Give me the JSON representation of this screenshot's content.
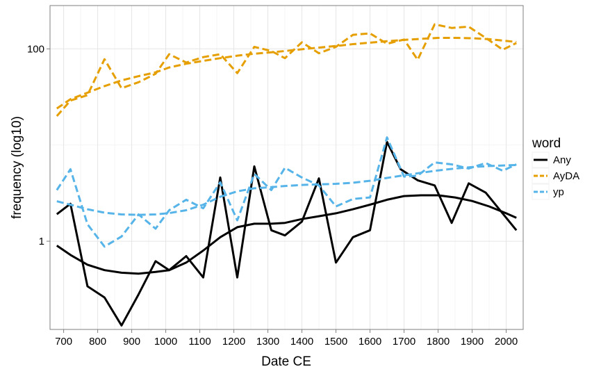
{
  "chart_data": {
    "type": "line",
    "title": "",
    "xlabel": "Date CE",
    "ylabel": "frequency (log10)",
    "yscale": "log10",
    "xlim": [
      660,
      2050
    ],
    "ylim": [
      0.121,
      282
    ],
    "x_ticks": [
      700,
      800,
      900,
      1000,
      1100,
      1200,
      1300,
      1400,
      1500,
      1600,
      1700,
      1800,
      1900,
      2000
    ],
    "x_tick_labels": [
      "700",
      "800",
      "900",
      "1000",
      "1100",
      "1200",
      "1300",
      "1400",
      "1500",
      "1600",
      "1700",
      "1800",
      "1900",
      "2000"
    ],
    "y_ticks": [
      1,
      100
    ],
    "y_tick_labels": [
      "1",
      "100"
    ],
    "legend": {
      "title": "word",
      "position": "right",
      "entries": [
        "Any",
        "AyDA",
        "yp"
      ]
    },
    "series": [
      {
        "name": "Any",
        "color": "#000000",
        "dash": "solid",
        "x": [
          680,
          720,
          770,
          820,
          870,
          920,
          970,
          1010,
          1060,
          1110,
          1160,
          1210,
          1260,
          1310,
          1350,
          1400,
          1450,
          1500,
          1550,
          1600,
          1650,
          1690,
          1740,
          1790,
          1840,
          1890,
          1940,
          2030
        ],
        "values": [
          1.91,
          2.45,
          0.34,
          0.26,
          0.133,
          0.28,
          0.62,
          0.5,
          0.7,
          0.42,
          4.6,
          0.42,
          6.0,
          1.3,
          1.15,
          1.6,
          4.5,
          0.6,
          1.1,
          1.3,
          10.8,
          5.6,
          4.3,
          3.8,
          1.55,
          4.0,
          3.2,
          1.3
        ]
      },
      {
        "name": "Any (smoothed)",
        "color": "#000000",
        "dash": "solid",
        "x": [
          680,
          720,
          770,
          820,
          870,
          920,
          970,
          1010,
          1060,
          1110,
          1160,
          1210,
          1260,
          1310,
          1350,
          1400,
          1450,
          1500,
          1550,
          1600,
          1650,
          1700,
          1750,
          1800,
          1850,
          1900,
          1950,
          2000,
          2030
        ],
        "values": [
          0.9,
          0.72,
          0.57,
          0.5,
          0.47,
          0.46,
          0.48,
          0.5,
          0.6,
          0.8,
          1.1,
          1.4,
          1.52,
          1.52,
          1.55,
          1.7,
          1.82,
          1.95,
          2.15,
          2.4,
          2.7,
          2.95,
          3.0,
          3.0,
          2.85,
          2.62,
          2.3,
          1.95,
          1.75
        ]
      },
      {
        "name": "AyDA",
        "color": "#E69F00",
        "dash": "dashed",
        "x": [
          680,
          720,
          770,
          820,
          870,
          920,
          970,
          1010,
          1060,
          1110,
          1160,
          1210,
          1260,
          1310,
          1350,
          1400,
          1450,
          1500,
          1550,
          1600,
          1650,
          1700,
          1740,
          1790,
          1840,
          1890,
          1940,
          1990,
          2030
        ],
        "values": [
          20,
          29,
          33,
          78,
          39,
          45,
          55,
          88,
          72,
          82,
          88,
          56,
          105,
          95,
          80,
          117,
          90,
          105,
          140,
          145,
          113,
          125,
          77,
          180,
          165,
          170,
          130,
          98,
          115
        ]
      },
      {
        "name": "AyDA (smoothed)",
        "color": "#E69F00",
        "dash": "dashed",
        "x": [
          680,
          720,
          770,
          820,
          870,
          920,
          970,
          1010,
          1060,
          1110,
          1160,
          1210,
          1260,
          1310,
          1350,
          1400,
          1450,
          1500,
          1550,
          1600,
          1650,
          1700,
          1750,
          1800,
          1850,
          1900,
          1950,
          2000,
          2030
        ],
        "values": [
          24,
          30,
          35,
          41,
          47,
          52,
          57,
          64,
          70,
          75,
          80,
          85,
          89,
          92,
          95,
          99,
          103,
          107,
          112,
          116,
          120,
          124,
          127,
          130,
          130,
          129,
          126,
          121,
          118
        ]
      },
      {
        "name": "yp",
        "color": "#56B4E9",
        "dash": "dashed",
        "x": [
          680,
          720,
          770,
          820,
          870,
          920,
          970,
          1010,
          1060,
          1110,
          1160,
          1210,
          1260,
          1310,
          1350,
          1400,
          1450,
          1500,
          1550,
          1600,
          1650,
          1700,
          1740,
          1790,
          1840,
          1890,
          1940,
          1990,
          2030
        ],
        "values": [
          3.4,
          5.6,
          1.5,
          0.88,
          1.12,
          1.9,
          1.35,
          2.1,
          2.7,
          2.2,
          4.1,
          1.65,
          5.0,
          3.4,
          5.8,
          4.6,
          3.8,
          2.3,
          2.75,
          2.85,
          12.0,
          4.7,
          4.8,
          6.6,
          6.3,
          5.7,
          6.5,
          5.4,
          6.3
        ]
      },
      {
        "name": "yp (smoothed)",
        "color": "#56B4E9",
        "dash": "dashed",
        "x": [
          680,
          720,
          770,
          820,
          870,
          920,
          970,
          1010,
          1060,
          1110,
          1160,
          1210,
          1260,
          1310,
          1350,
          1400,
          1450,
          1500,
          1550,
          1600,
          1650,
          1700,
          1750,
          1800,
          1850,
          1900,
          1950,
          2000,
          2030
        ],
        "values": [
          2.6,
          2.4,
          2.15,
          1.98,
          1.9,
          1.88,
          1.9,
          1.96,
          2.1,
          2.4,
          2.9,
          3.3,
          3.55,
          3.65,
          3.75,
          3.85,
          3.9,
          3.95,
          4.05,
          4.25,
          4.55,
          4.85,
          5.15,
          5.45,
          5.7,
          5.9,
          6.05,
          6.15,
          6.2
        ]
      }
    ]
  }
}
